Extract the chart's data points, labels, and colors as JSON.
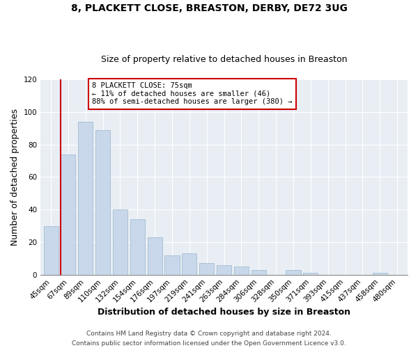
{
  "title": "8, PLACKETT CLOSE, BREASTON, DERBY, DE72 3UG",
  "subtitle": "Size of property relative to detached houses in Breaston",
  "xlabel": "Distribution of detached houses by size in Breaston",
  "ylabel": "Number of detached properties",
  "bar_labels": [
    "45sqm",
    "67sqm",
    "89sqm",
    "110sqm",
    "132sqm",
    "154sqm",
    "176sqm",
    "197sqm",
    "219sqm",
    "241sqm",
    "263sqm",
    "284sqm",
    "306sqm",
    "328sqm",
    "350sqm",
    "371sqm",
    "393sqm",
    "415sqm",
    "437sqm",
    "458sqm",
    "480sqm"
  ],
  "bar_values": [
    30,
    74,
    94,
    89,
    40,
    34,
    23,
    12,
    13,
    7,
    6,
    5,
    3,
    0,
    3,
    1,
    0,
    0,
    0,
    1,
    0
  ],
  "bar_color": "#c8d8ea",
  "bar_edge_color": "#9ab4cc",
  "highlight_line_color": "#cc0000",
  "ylim": [
    0,
    120
  ],
  "yticks": [
    0,
    20,
    40,
    60,
    80,
    100,
    120
  ],
  "annotation_title": "8 PLACKETT CLOSE: 75sqm",
  "annotation_line1": "← 11% of detached houses are smaller (46)",
  "annotation_line2": "88% of semi-detached houses are larger (380) →",
  "annotation_box_color": "#ffffff",
  "annotation_box_edge": "#cc0000",
  "footer_line1": "Contains HM Land Registry data © Crown copyright and database right 2024.",
  "footer_line2": "Contains public sector information licensed under the Open Government Licence v3.0.",
  "background_color": "#ffffff",
  "plot_background": "#e8eef4",
  "title_fontsize": 10,
  "subtitle_fontsize": 9,
  "axis_label_fontsize": 9,
  "tick_fontsize": 7.5,
  "footer_fontsize": 6.5
}
